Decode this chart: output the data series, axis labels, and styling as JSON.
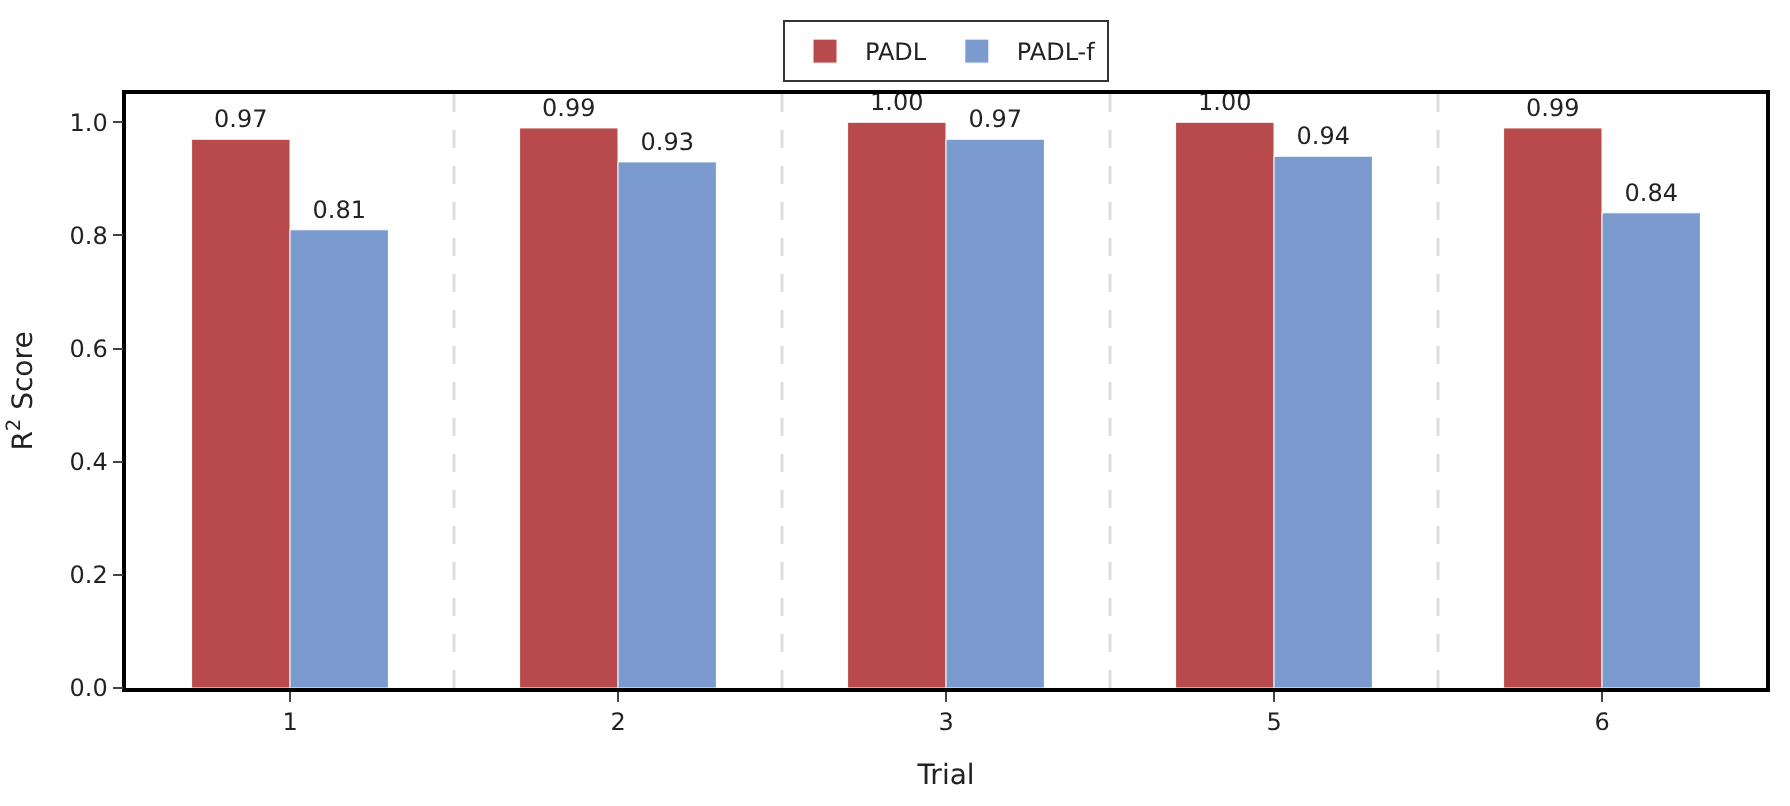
{
  "chart_data": {
    "type": "bar",
    "xlabel": "Trial",
    "ylabel": "R$^{2}$ Score",
    "categories": [
      "1",
      "2",
      "3",
      "5",
      "6"
    ],
    "series": [
      {
        "name": "PADL",
        "color": "#b94a4c",
        "values": [
          0.97,
          0.99,
          1.0,
          1.0,
          0.99
        ],
        "value_labels": [
          "0.97",
          "0.99",
          "1.00",
          "1.00",
          "0.99"
        ]
      },
      {
        "name": "PADL-f",
        "color": "#7b9bcf",
        "values": [
          0.81,
          0.93,
          0.97,
          0.94,
          0.84
        ],
        "value_labels": [
          "0.81",
          "0.93",
          "0.97",
          "0.94",
          "0.84"
        ]
      }
    ],
    "ylim": [
      0,
      1.05
    ],
    "yticks": [
      {
        "value": 0,
        "label": "0.0"
      },
      {
        "value": 0.2,
        "label": "0.2"
      },
      {
        "value": 0.4,
        "label": "0.4"
      },
      {
        "value": 0.6,
        "label": "0.6"
      },
      {
        "value": 0.8,
        "label": "0.8"
      },
      {
        "value": 1.0,
        "label": "1.0"
      }
    ],
    "grid": "x",
    "legend": "top"
  }
}
